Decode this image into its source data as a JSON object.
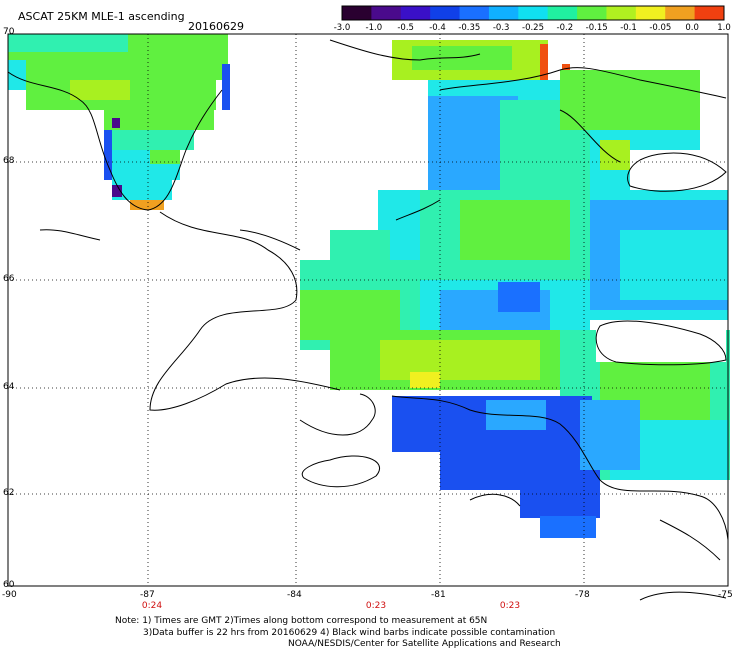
{
  "header": {
    "title": "ASCAT 25KM MLE-1 ascending",
    "date": "20160629"
  },
  "colorbar": {
    "labels": [
      "-3.0",
      "-1.0",
      "-0.5",
      "-0.4",
      "-0.35",
      "-0.3",
      "-0.25",
      "-0.2",
      "-0.15",
      "-0.1",
      "-0.05",
      "0.0",
      "1.0"
    ],
    "colors": [
      "#2a0030",
      "#4a0a8c",
      "#3a10c8",
      "#1040e8",
      "#1a70ff",
      "#10b0ff",
      "#10e0f0",
      "#20f0a0",
      "#60f040",
      "#b0f020",
      "#f0f020",
      "#f0a020",
      "#f04010"
    ]
  },
  "axes": {
    "lat_labels": [
      "70",
      "68",
      "66",
      "64",
      "62",
      "60"
    ],
    "lon_labels": [
      "-90",
      "-87",
      "-84",
      "-81",
      "-78",
      "-75"
    ]
  },
  "times": {
    "t1": "0:24",
    "t2": "0:23",
    "t3": "0:23"
  },
  "notes": {
    "line1": "Note: 1) Times are GMT 2)Times along bottom correspond to measurement at 65N",
    "line2": "3)Data buffer is 22 hrs from 20160629 4) Black wind barbs indicate possible contamination",
    "line3": "NOAA/NESDIS/Center for Satellite Applications and Research"
  },
  "palette": {
    "deep_blue": "#1a50f0",
    "mid_blue": "#2aa8ff",
    "cyan": "#20e8e8",
    "aqua": "#30f0b0",
    "green": "#60f040",
    "lime": "#a8f020",
    "yellow": "#f0f020",
    "orange": "#f0a020",
    "red": "#f05010"
  }
}
